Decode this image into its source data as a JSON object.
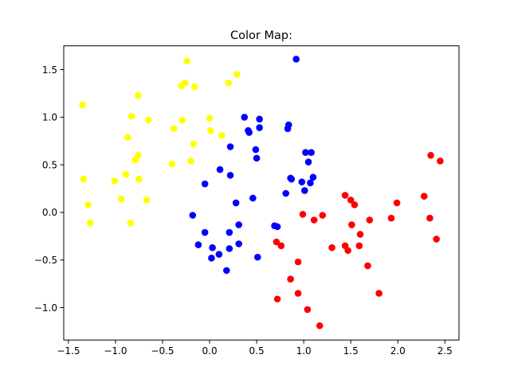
{
  "chart_data": {
    "type": "scatter",
    "title": "Color Map:",
    "xlabel": "",
    "ylabel": "",
    "xlim": [
      -1.55,
      2.65
    ],
    "ylim": [
      -1.34,
      1.75
    ],
    "xticks": [
      -1.5,
      -1.0,
      -0.5,
      0.0,
      0.5,
      1.0,
      1.5,
      2.0,
      2.5
    ],
    "xtick_labels": [
      "−1.5",
      "−1.0",
      "−0.5",
      "0.0",
      "0.5",
      "1.0",
      "1.5",
      "2.0",
      "2.5"
    ],
    "yticks": [
      -1.0,
      -0.5,
      0.0,
      0.5,
      1.0,
      1.5
    ],
    "ytick_labels": [
      "−1.0",
      "−0.5",
      "0.0",
      "0.5",
      "1.0",
      "1.5"
    ],
    "grid": false,
    "series": [
      {
        "color": "#ffff00",
        "points": [
          [
            -1.35,
            1.13
          ],
          [
            -1.34,
            0.35
          ],
          [
            -1.29,
            0.08
          ],
          [
            -1.27,
            -0.11
          ],
          [
            -1.01,
            0.33
          ],
          [
            -0.94,
            0.14
          ],
          [
            -0.89,
            0.4
          ],
          [
            -0.87,
            0.79
          ],
          [
            -0.84,
            -0.11
          ],
          [
            -0.83,
            1.01
          ],
          [
            -0.79,
            0.55
          ],
          [
            -0.76,
            0.6
          ],
          [
            -0.76,
            1.23
          ],
          [
            -0.75,
            0.35
          ],
          [
            -0.67,
            0.13
          ],
          [
            -0.65,
            0.97
          ],
          [
            -0.4,
            0.51
          ],
          [
            -0.38,
            0.88
          ],
          [
            -0.3,
            1.33
          ],
          [
            -0.29,
            0.97
          ],
          [
            -0.26,
            1.36
          ],
          [
            -0.24,
            1.59
          ],
          [
            -0.2,
            0.54
          ],
          [
            -0.17,
            0.72
          ],
          [
            -0.16,
            1.32
          ],
          [
            0.0,
            0.99
          ],
          [
            0.01,
            0.86
          ],
          [
            0.13,
            0.81
          ],
          [
            0.2,
            1.36
          ],
          [
            0.29,
            1.45
          ]
        ]
      },
      {
        "color": "#0000ff",
        "points": [
          [
            -0.18,
            -0.03
          ],
          [
            -0.12,
            -0.34
          ],
          [
            -0.05,
            -0.21
          ],
          [
            -0.05,
            0.3
          ],
          [
            0.02,
            -0.48
          ],
          [
            0.03,
            -0.37
          ],
          [
            0.1,
            -0.44
          ],
          [
            0.11,
            0.45
          ],
          [
            0.18,
            -0.61
          ],
          [
            0.21,
            -0.38
          ],
          [
            0.21,
            -0.21
          ],
          [
            0.22,
            0.39
          ],
          [
            0.22,
            0.69
          ],
          [
            0.28,
            0.1
          ],
          [
            0.31,
            -0.33
          ],
          [
            0.31,
            -0.13
          ],
          [
            0.37,
            1.0
          ],
          [
            0.41,
            0.86
          ],
          [
            0.42,
            0.84
          ],
          [
            0.46,
            0.15
          ],
          [
            0.49,
            0.66
          ],
          [
            0.5,
            0.57
          ],
          [
            0.51,
            -0.47
          ],
          [
            0.53,
            0.89
          ],
          [
            0.53,
            0.98
          ],
          [
            0.69,
            -0.14
          ],
          [
            0.72,
            -0.15
          ],
          [
            0.81,
            0.2
          ],
          [
            0.83,
            0.88
          ],
          [
            0.84,
            0.92
          ],
          [
            0.86,
            0.36
          ],
          [
            0.87,
            0.35
          ],
          [
            0.92,
            1.61
          ],
          [
            0.98,
            0.32
          ],
          [
            1.01,
            0.23
          ],
          [
            1.02,
            0.63
          ],
          [
            1.05,
            0.53
          ],
          [
            1.07,
            0.31
          ],
          [
            1.08,
            0.63
          ],
          [
            1.1,
            0.37
          ]
        ]
      },
      {
        "color": "#ff0000",
        "points": [
          [
            0.71,
            -0.31
          ],
          [
            0.72,
            -0.91
          ],
          [
            0.76,
            -0.35
          ],
          [
            0.86,
            -0.7
          ],
          [
            0.94,
            -0.52
          ],
          [
            0.94,
            -0.85
          ],
          [
            0.99,
            -0.02
          ],
          [
            1.04,
            -1.02
          ],
          [
            1.11,
            -0.08
          ],
          [
            1.17,
            -1.19
          ],
          [
            1.2,
            -0.03
          ],
          [
            1.3,
            -0.37
          ],
          [
            1.44,
            0.18
          ],
          [
            1.44,
            -0.35
          ],
          [
            1.47,
            -0.4
          ],
          [
            1.5,
            0.13
          ],
          [
            1.51,
            -0.13
          ],
          [
            1.54,
            0.08
          ],
          [
            1.59,
            -0.35
          ],
          [
            1.6,
            -0.23
          ],
          [
            1.68,
            -0.56
          ],
          [
            1.7,
            -0.08
          ],
          [
            1.8,
            -0.85
          ],
          [
            1.93,
            -0.06
          ],
          [
            1.99,
            0.1
          ],
          [
            2.28,
            0.17
          ],
          [
            2.34,
            -0.06
          ],
          [
            2.35,
            0.6
          ],
          [
            2.41,
            -0.28
          ],
          [
            2.45,
            0.54
          ]
        ]
      }
    ]
  }
}
